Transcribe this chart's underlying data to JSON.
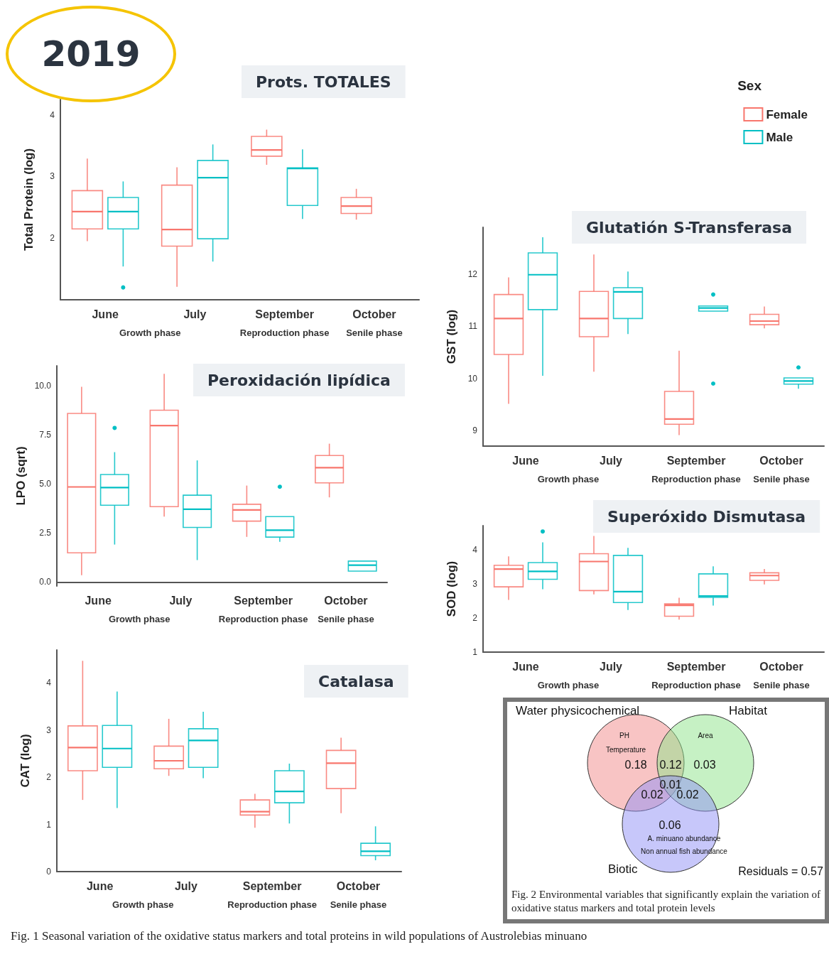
{
  "chart_data": [
    {
      "type": "box",
      "title": "Prots. TOTALES",
      "ylabel": "Total Protein (log)",
      "categories": [
        "June",
        "July",
        "September",
        "October"
      ],
      "ylim": [
        1,
        4.25
      ],
      "yticks": [
        2,
        3,
        4
      ],
      "legend": "top right",
      "legend_title": "Sex",
      "annotations": [
        "Growth phase",
        "Reproduction phase",
        "Senile phase",
        "2019",
        "Fig. 1  Seasonal variation of the oxidative status markers and total proteins in wild populations of Austrolebias minuano"
      ],
      "series": [
        {
          "name": "Female",
          "color": "#f8766d",
          "boxes": [
            {
              "low": 1.95,
              "q1": 2.15,
              "median": 2.43,
              "q3": 2.77,
              "high": 3.29
            },
            {
              "low": 1.21,
              "q1": 1.87,
              "median": 2.14,
              "q3": 2.86,
              "high": 3.15
            },
            {
              "low": 3.19,
              "q1": 3.33,
              "median": 3.43,
              "q3": 3.65,
              "high": 3.76
            },
            {
              "low": 2.3,
              "q1": 2.4,
              "median": 2.52,
              "q3": 2.66,
              "high": 2.8
            }
          ]
        },
        {
          "name": "Male",
          "color": "#00bfc4",
          "boxes": [
            {
              "low": 1.54,
              "q1": 2.15,
              "median": 2.43,
              "q3": 2.66,
              "high": 2.92,
              "outliers": [
                1.2
              ]
            },
            {
              "low": 1.62,
              "q1": 1.99,
              "median": 2.98,
              "q3": 3.26,
              "high": 3.52
            },
            {
              "low": 2.31,
              "q1": 2.53,
              "median": 3.13,
              "q3": 3.14,
              "high": 3.44
            },
            null
          ]
        }
      ]
    },
    {
      "type": "box",
      "title": "Glutatión S-Transferasa",
      "ylabel": "GST (log)",
      "categories": [
        "June",
        "July",
        "September",
        "October"
      ],
      "ylim": [
        8.7,
        12.9
      ],
      "yticks": [
        9,
        10,
        11,
        12
      ],
      "annotations": [
        "Growth phase",
        "Reproduction phase",
        "Senile phase"
      ],
      "series": [
        {
          "color": "#f8766d",
          "boxes": [
            {
              "low": 9.51,
              "q1": 10.46,
              "median": 11.15,
              "q3": 11.61,
              "high": 11.94
            },
            {
              "low": 10.13,
              "q1": 10.8,
              "median": 11.15,
              "q3": 11.67,
              "high": 12.38
            },
            {
              "low": 8.91,
              "q1": 9.12,
              "median": 9.22,
              "q3": 9.75,
              "high": 10.53
            },
            {
              "low": 10.96,
              "q1": 11.03,
              "median": 11.1,
              "q3": 11.23,
              "high": 11.38
            }
          ]
        },
        {
          "color": "#00bfc4",
          "boxes": [
            {
              "low": 10.05,
              "q1": 11.32,
              "median": 11.99,
              "q3": 12.41,
              "high": 12.71
            },
            {
              "low": 10.85,
              "q1": 11.15,
              "median": 11.66,
              "q3": 11.74,
              "high": 12.05
            },
            {
              "low": 11.29,
              "q1": 11.29,
              "median": 11.35,
              "q3": 11.39,
              "high": 11.39,
              "outliers": [
                11.61,
                9.9
              ]
            },
            {
              "low": 9.8,
              "q1": 9.89,
              "median": 9.95,
              "q3": 10.01,
              "high": 10.01,
              "outliers": [
                10.21
              ]
            }
          ]
        }
      ]
    },
    {
      "type": "box",
      "title": "Peroxidación lipídica",
      "ylabel": "LPO (sqrt)",
      "categories": [
        "June",
        "July",
        "September",
        "October"
      ],
      "ylim": [
        -0.2,
        11
      ],
      "yticks": [
        {
          "value": 0,
          "label": "0.0"
        },
        2.5,
        {
          "value": 5,
          "label": "5.0"
        },
        7.5,
        {
          "value": 10,
          "label": "10.0"
        }
      ],
      "annotations": [
        "Growth phase",
        "Reproduction phase",
        "Senile phase"
      ],
      "series": [
        {
          "color": "#f8766d",
          "boxes": [
            {
              "low": 0.35,
              "q1": 1.49,
              "median": 4.84,
              "q3": 8.58,
              "high": 9.93
            },
            {
              "low": 3.33,
              "q1": 3.84,
              "median": 7.96,
              "q3": 8.74,
              "high": 10.59
            },
            {
              "low": 2.3,
              "q1": 3.1,
              "median": 3.67,
              "q3": 3.96,
              "high": 4.91
            },
            {
              "low": 4.31,
              "q1": 5.05,
              "median": 5.82,
              "q3": 6.44,
              "high": 7.04
            }
          ]
        },
        {
          "color": "#00bfc4",
          "boxes": [
            {
              "low": 1.91,
              "q1": 3.91,
              "median": 4.81,
              "q3": 5.47,
              "high": 6.61,
              "outliers": [
                7.84
              ]
            },
            {
              "low": 1.12,
              "q1": 2.78,
              "median": 3.71,
              "q3": 4.42,
              "high": 6.19
            },
            {
              "low": 2.05,
              "q1": 2.29,
              "median": 2.64,
              "q3": 3.33,
              "high": 3.33,
              "outliers": [
                4.85
              ]
            },
            {
              "low": 0.56,
              "q1": 0.56,
              "median": 0.86,
              "q3": 1.07,
              "high": 1.07
            }
          ]
        }
      ]
    },
    {
      "type": "box",
      "title": "Superóxido Dismutasa",
      "ylabel": "SOD (log)",
      "categories": [
        "June",
        "July",
        "September",
        "October"
      ],
      "ylim": [
        1,
        4.7
      ],
      "yticks": [
        1,
        2,
        3,
        4
      ],
      "annotations": [
        "Growth phase",
        "Reproduction phase",
        "Senile phase"
      ],
      "series": [
        {
          "color": "#f8766d",
          "boxes": [
            {
              "low": 2.53,
              "q1": 2.91,
              "median": 3.43,
              "q3": 3.54,
              "high": 3.8
            },
            {
              "low": 2.69,
              "q1": 2.8,
              "median": 3.65,
              "q3": 3.88,
              "high": 4.4
            },
            {
              "low": 1.95,
              "q1": 2.05,
              "median": 2.37,
              "q3": 2.41,
              "high": 2.59
            },
            {
              "low": 2.98,
              "q1": 3.1,
              "median": 3.24,
              "q3": 3.32,
              "high": 3.43
            }
          ]
        },
        {
          "color": "#00bfc4",
          "boxes": [
            {
              "low": 2.84,
              "q1": 3.13,
              "median": 3.36,
              "q3": 3.62,
              "high": 4.21,
              "outliers": [
                4.53
              ]
            },
            {
              "low": 2.23,
              "q1": 2.45,
              "median": 2.77,
              "q3": 3.83,
              "high": 4.05
            },
            {
              "low": 2.36,
              "q1": 2.6,
              "median": 2.64,
              "q3": 3.29,
              "high": 3.51
            },
            null
          ]
        }
      ]
    },
    {
      "type": "box",
      "title": "Catalasa",
      "ylabel": "CAT (log)",
      "categories": [
        "June",
        "July",
        "September",
        "October"
      ],
      "ylim": [
        0,
        4.7
      ],
      "yticks": [
        0,
        1,
        2,
        3,
        4
      ],
      "annotations": [
        "Growth phase",
        "Reproduction phase",
        "Senile phase"
      ],
      "series": [
        {
          "color": "#f8766d",
          "boxes": [
            {
              "low": 1.52,
              "q1": 2.14,
              "median": 2.63,
              "q3": 3.09,
              "high": 4.47
            },
            {
              "low": 2.03,
              "q1": 2.18,
              "median": 2.35,
              "q3": 2.66,
              "high": 3.24
            },
            {
              "low": 0.93,
              "q1": 1.2,
              "median": 1.27,
              "q3": 1.52,
              "high": 1.65
            },
            {
              "low": 1.24,
              "q1": 1.76,
              "median": 2.3,
              "q3": 2.57,
              "high": 2.84
            }
          ]
        },
        {
          "color": "#00bfc4",
          "boxes": [
            {
              "low": 1.35,
              "q1": 2.21,
              "median": 2.61,
              "q3": 3.1,
              "high": 3.82
            },
            {
              "low": 1.98,
              "q1": 2.21,
              "median": 2.78,
              "q3": 3.03,
              "high": 3.39
            },
            {
              "low": 1.02,
              "q1": 1.46,
              "median": 1.7,
              "q3": 2.14,
              "high": 2.29
            },
            {
              "low": 0.24,
              "q1": 0.34,
              "median": 0.43,
              "q3": 0.6,
              "high": 0.96
            }
          ]
        }
      ]
    },
    {
      "type": "other",
      "annotations": [
        "Water physicochemical",
        "Habitat",
        "Biotic",
        "PH",
        "Temperature",
        "Area",
        "A. minuano abundance",
        "Non annual fish abundance",
        "0.18",
        "0.12",
        "0.03",
        "0.01",
        "0.02",
        "0.02",
        "0.06",
        "Residuals = 0.57",
        "Fig. 2  Environmental variables that significantly explain the variation of oxidative status markers and total protein levels"
      ]
    }
  ]
}
